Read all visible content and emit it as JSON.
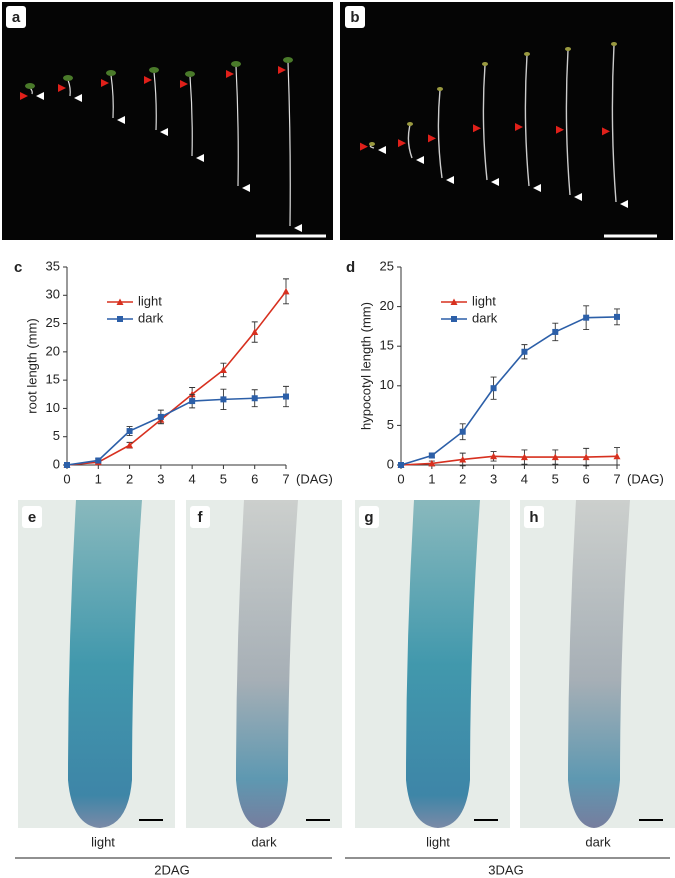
{
  "panels": {
    "a": "a",
    "b": "b",
    "c": "c",
    "d": "d",
    "e": "e",
    "f": "f",
    "g": "g",
    "h": "h"
  },
  "photo_captions": {
    "e": "light",
    "f": "dark",
    "g": "light",
    "h": "dark"
  },
  "group_labels": [
    "2DAG",
    "3DAG"
  ],
  "chart_data": [
    {
      "type": "line",
      "ylabel": "root length (mm)",
      "xlabel": "(DAG)",
      "x": [
        0,
        1,
        2,
        3,
        4,
        5,
        6,
        7
      ],
      "xlim": [
        0,
        7
      ],
      "xticks": [
        0,
        1,
        2,
        3,
        4,
        5,
        6,
        7
      ],
      "ylim": [
        0,
        35
      ],
      "yticks": [
        0,
        5,
        10,
        15,
        20,
        25,
        30,
        35
      ],
      "legend": "upper left",
      "series": [
        {
          "name": "light",
          "color": "#d7301f",
          "marker": "triangle",
          "values": [
            0,
            0.5,
            3.5,
            8,
            12.5,
            16.8,
            23.5,
            30.7
          ],
          "errors": [
            0,
            0.3,
            0.5,
            0.7,
            1.2,
            1.2,
            1.8,
            2.2
          ]
        },
        {
          "name": "dark",
          "color": "#2c5fa8",
          "marker": "square",
          "values": [
            0,
            0.8,
            6,
            8.5,
            11.3,
            11.6,
            11.8,
            12.1
          ],
          "errors": [
            0,
            0.3,
            0.8,
            1.2,
            1.2,
            1.8,
            1.5,
            1.8
          ]
        }
      ]
    },
    {
      "type": "line",
      "ylabel": "hypocotyl length (mm)",
      "xlabel": "(DAG)",
      "x": [
        0,
        1,
        2,
        3,
        4,
        5,
        6,
        7
      ],
      "xlim": [
        0,
        7
      ],
      "xticks": [
        0,
        1,
        2,
        3,
        4,
        5,
        6,
        7
      ],
      "ylim": [
        0,
        25
      ],
      "yticks": [
        0,
        5,
        10,
        15,
        20,
        25
      ],
      "legend": "upper left",
      "series": [
        {
          "name": "light",
          "color": "#d7301f",
          "marker": "triangle",
          "values": [
            0,
            0.2,
            0.7,
            1.1,
            1,
            1,
            1,
            1.1
          ],
          "errors": [
            0,
            0.3,
            0.8,
            0.6,
            0.9,
            0.9,
            1.1,
            1.1
          ]
        },
        {
          "name": "dark",
          "color": "#2c5fa8",
          "marker": "square",
          "values": [
            0,
            1.2,
            4.2,
            9.7,
            14.3,
            16.8,
            18.6,
            18.7
          ],
          "errors": [
            0,
            0.3,
            1,
            1.4,
            0.9,
            1.1,
            1.5,
            1
          ]
        }
      ]
    }
  ]
}
